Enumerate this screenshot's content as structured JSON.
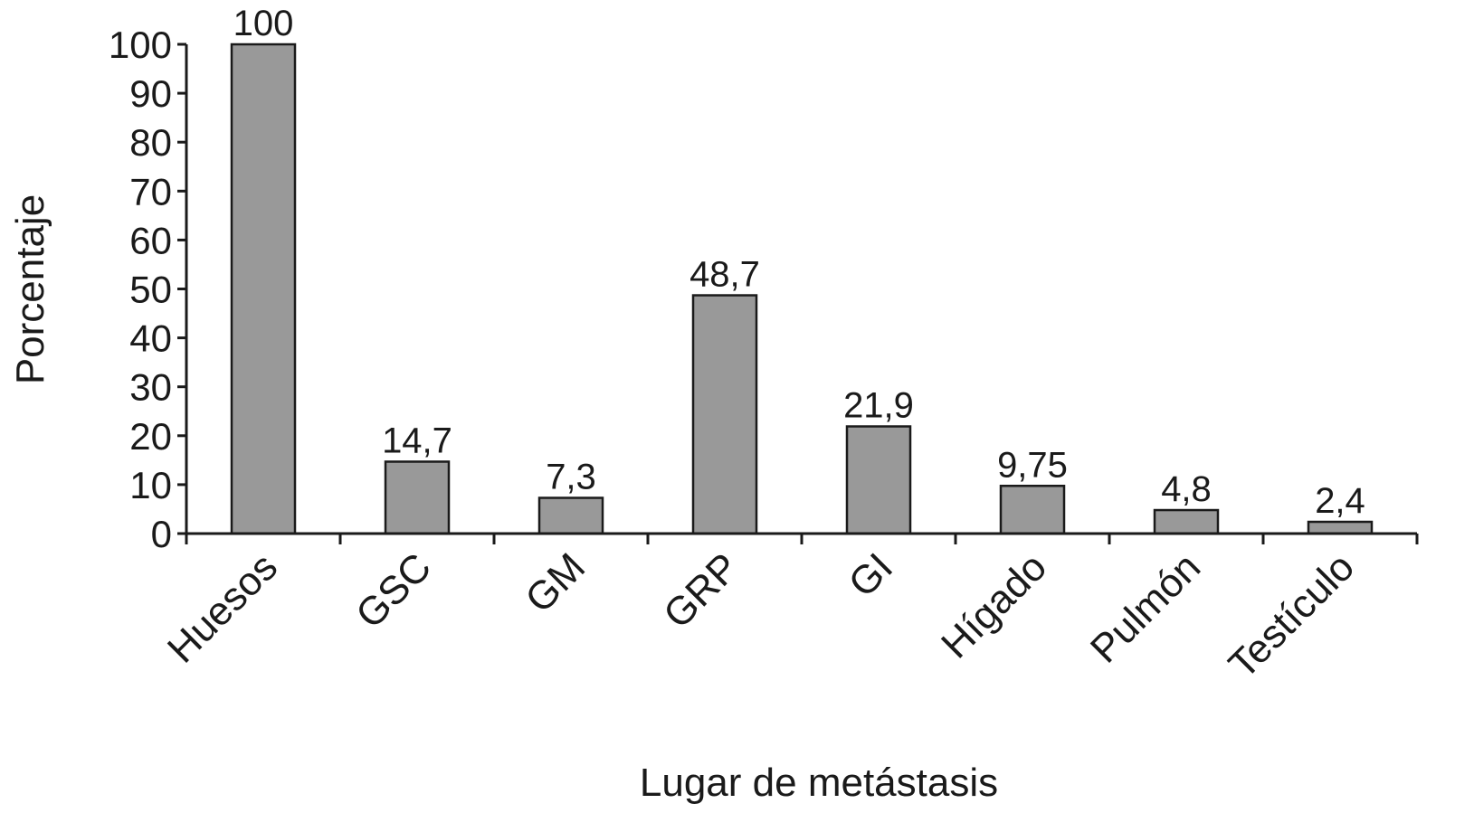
{
  "chart_data": {
    "type": "bar",
    "xlabel": "Lugar de metástasis",
    "ylabel": "Porcentaje",
    "categories": [
      "Huesos",
      "GSC",
      "GM",
      "GRP",
      "GI",
      "Hígado",
      "Pulmón",
      "Testículo"
    ],
    "values": [
      100,
      14.7,
      7.3,
      48.7,
      21.9,
      9.75,
      4.8,
      2.4
    ],
    "value_labels": [
      "100",
      "14,7",
      "7,3",
      "48,7",
      "21,9",
      "9,75",
      "4,8",
      "2,4"
    ],
    "ylim": [
      0,
      100
    ],
    "yticks": [
      0,
      10,
      20,
      30,
      40,
      50,
      60,
      70,
      80,
      90,
      100
    ],
    "grid": false,
    "legend": "none",
    "bar_color": "#999999",
    "bar_edge_color": "#1a1a1a"
  }
}
